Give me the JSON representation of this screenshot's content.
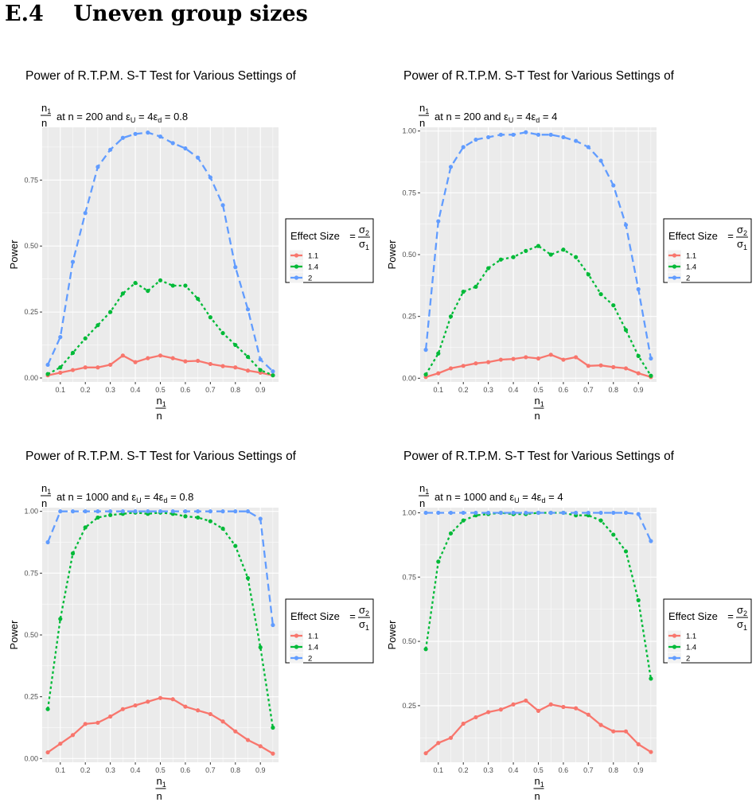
{
  "heading": {
    "number": "E.4",
    "text": "Uneven group sizes"
  },
  "axes": {
    "x_num": "n",
    "x_num_sub": "1",
    "x_den": "n",
    "ylabel": "Power"
  },
  "legend": {
    "title": "Effect Size",
    "eq": "=",
    "num": "σ",
    "num_sub": "2",
    "den": "σ",
    "den_sub": "1"
  },
  "colors": {
    "s11": "#F8766D",
    "s14": "#00BA38",
    "s2": "#619CFF"
  },
  "chart_data": [
    {
      "type": "line",
      "title": "Power of R.T.P.M. S-T Test for Various Settings of",
      "subtitle": {
        "frac_num": "n",
        "frac_num_sub": "1",
        "frac_den": "n",
        "pre": "at n = 200 and ε",
        "sub1": "U",
        "mid": " = 4ε",
        "sub2": "d",
        "post": " = 0.8"
      },
      "xlabel": "n1/n",
      "ylabel": "Power",
      "ylim": [
        -0.015,
        0.95
      ],
      "xlim": [
        0.0275,
        0.9725
      ],
      "yticks": [
        0,
        0.25,
        0.5,
        0.75
      ],
      "ytick_labels": [
        "0.00",
        "0.25",
        "0.50",
        "0.75"
      ],
      "xticks": [
        0.1,
        0.2,
        0.3,
        0.4,
        0.5,
        0.6,
        0.7,
        0.8,
        0.9
      ],
      "xtick_labels": [
        "0.1",
        "0.2",
        "0.3",
        "0.4",
        "0.5",
        "0.6",
        "0.7",
        "0.8",
        "0.9"
      ],
      "x": [
        0.05,
        0.1,
        0.15,
        0.2,
        0.25,
        0.3,
        0.35,
        0.4,
        0.45,
        0.5,
        0.55,
        0.6,
        0.65,
        0.7,
        0.75,
        0.8,
        0.85,
        0.9,
        0.95
      ],
      "grid": true,
      "legend": "right",
      "series": [
        {
          "name": "1.1",
          "color": "#F8766D",
          "dash": "solid",
          "values": [
            0.01,
            0.02,
            0.03,
            0.04,
            0.04,
            0.05,
            0.085,
            0.06,
            0.075,
            0.085,
            0.075,
            0.063,
            0.065,
            0.053,
            0.045,
            0.04,
            0.028,
            0.02,
            0.01
          ]
        },
        {
          "name": "1.4",
          "color": "#00BA38",
          "dash": "dotted",
          "values": [
            0.015,
            0.04,
            0.095,
            0.15,
            0.2,
            0.25,
            0.32,
            0.36,
            0.33,
            0.37,
            0.35,
            0.35,
            0.3,
            0.23,
            0.17,
            0.125,
            0.08,
            0.03,
            0.01
          ]
        },
        {
          "name": "2",
          "color": "#619CFF",
          "dash": "dashed",
          "values": [
            0.05,
            0.155,
            0.44,
            0.625,
            0.8,
            0.865,
            0.91,
            0.925,
            0.93,
            0.915,
            0.89,
            0.87,
            0.835,
            0.76,
            0.655,
            0.42,
            0.26,
            0.07,
            0.025
          ]
        }
      ]
    },
    {
      "type": "line",
      "title": "Power of R.T.P.M. S-T Test for Various Settings of",
      "subtitle": {
        "frac_num": "n",
        "frac_num_sub": "1",
        "frac_den": "n",
        "pre": "at n = 200 and ε",
        "sub1": "U",
        "mid": " = 4ε",
        "sub2": "d",
        "post": " = 4"
      },
      "xlabel": "n1/n",
      "ylabel": "Power",
      "ylim": [
        -0.015,
        1.015
      ],
      "xlim": [
        0.0275,
        0.9725
      ],
      "yticks": [
        0,
        0.25,
        0.5,
        0.75,
        1
      ],
      "ytick_labels": [
        "0.00",
        "0.25",
        "0.50",
        "0.75",
        "1.00"
      ],
      "xticks": [
        0.1,
        0.2,
        0.3,
        0.4,
        0.5,
        0.6,
        0.7,
        0.8,
        0.9
      ],
      "xtick_labels": [
        "0.1",
        "0.2",
        "0.3",
        "0.4",
        "0.5",
        "0.6",
        "0.7",
        "0.8",
        "0.9"
      ],
      "x": [
        0.05,
        0.1,
        0.15,
        0.2,
        0.25,
        0.3,
        0.35,
        0.4,
        0.45,
        0.5,
        0.55,
        0.6,
        0.65,
        0.7,
        0.75,
        0.8,
        0.85,
        0.9,
        0.95
      ],
      "grid": true,
      "legend": "right",
      "series": [
        {
          "name": "1.1",
          "color": "#F8766D",
          "dash": "solid",
          "values": [
            0.005,
            0.02,
            0.04,
            0.05,
            0.06,
            0.065,
            0.075,
            0.078,
            0.085,
            0.08,
            0.095,
            0.075,
            0.085,
            0.05,
            0.052,
            0.045,
            0.04,
            0.02,
            0.005
          ]
        },
        {
          "name": "1.4",
          "color": "#00BA38",
          "dash": "dotted",
          "values": [
            0.015,
            0.1,
            0.25,
            0.35,
            0.37,
            0.445,
            0.48,
            0.49,
            0.515,
            0.535,
            0.5,
            0.52,
            0.49,
            0.42,
            0.34,
            0.295,
            0.195,
            0.09,
            0.01
          ]
        },
        {
          "name": "2",
          "color": "#619CFF",
          "dash": "dashed",
          "values": [
            0.115,
            0.635,
            0.855,
            0.935,
            0.965,
            0.975,
            0.985,
            0.985,
            0.995,
            0.985,
            0.985,
            0.975,
            0.96,
            0.935,
            0.88,
            0.78,
            0.62,
            0.36,
            0.08
          ]
        }
      ]
    },
    {
      "type": "line",
      "title": "Power of R.T.P.M. S-T Test for Various Settings of",
      "subtitle": {
        "frac_num": "n",
        "frac_num_sub": "1",
        "frac_den": "n",
        "pre": "at n = 1000 and ε",
        "sub1": "U",
        "mid": " = 4ε",
        "sub2": "d",
        "post": " = 0.8"
      },
      "xlabel": "n1/n",
      "ylabel": "Power",
      "ylim": [
        -0.015,
        1.015
      ],
      "xlim": [
        0.0275,
        0.9725
      ],
      "yticks": [
        0,
        0.25,
        0.5,
        0.75,
        1
      ],
      "ytick_labels": [
        "0.00",
        "0.25",
        "0.50",
        "0.75",
        "1.00"
      ],
      "xticks": [
        0.1,
        0.2,
        0.3,
        0.4,
        0.5,
        0.6,
        0.7,
        0.8,
        0.9
      ],
      "xtick_labels": [
        "0.1",
        "0.2",
        "0.3",
        "0.4",
        "0.5",
        "0.6",
        "0.7",
        "0.8",
        "0.9"
      ],
      "x": [
        0.05,
        0.1,
        0.15,
        0.2,
        0.25,
        0.3,
        0.35,
        0.4,
        0.45,
        0.5,
        0.55,
        0.6,
        0.65,
        0.7,
        0.75,
        0.8,
        0.85,
        0.9,
        0.95
      ],
      "grid": true,
      "legend": "right",
      "series": [
        {
          "name": "1.1",
          "color": "#F8766D",
          "dash": "solid",
          "values": [
            0.025,
            0.06,
            0.095,
            0.14,
            0.145,
            0.17,
            0.2,
            0.215,
            0.23,
            0.245,
            0.24,
            0.21,
            0.195,
            0.18,
            0.15,
            0.11,
            0.075,
            0.05,
            0.02
          ]
        },
        {
          "name": "1.4",
          "color": "#00BA38",
          "dash": "dotted",
          "values": [
            0.2,
            0.565,
            0.83,
            0.935,
            0.975,
            0.985,
            0.99,
            0.995,
            0.99,
            0.995,
            0.99,
            0.98,
            0.975,
            0.96,
            0.93,
            0.86,
            0.73,
            0.45,
            0.125
          ]
        },
        {
          "name": "2",
          "color": "#619CFF",
          "dash": "dashed",
          "values": [
            0.875,
            1,
            1,
            1,
            1,
            1,
            1,
            1,
            1,
            1,
            1,
            1,
            1,
            1,
            1,
            1,
            1,
            0.97,
            0.54
          ]
        }
      ]
    },
    {
      "type": "line",
      "title": "Power of R.T.P.M. S-T Test for Various Settings of",
      "subtitle": {
        "frac_num": "n",
        "frac_num_sub": "1",
        "frac_den": "n",
        "pre": "at n = 1000 and ε",
        "sub1": "U",
        "mid": " = 4ε",
        "sub2": "d",
        "post": " = 4"
      },
      "xlabel": "n1/n",
      "ylabel": "Power",
      "ylim": [
        0.03,
        1.02
      ],
      "xlim": [
        0.0275,
        0.9725
      ],
      "yticks": [
        0.25,
        0.5,
        0.75,
        1
      ],
      "ytick_labels": [
        "0.25",
        "0.50",
        "0.75",
        "1.00"
      ],
      "xticks": [
        0.1,
        0.2,
        0.3,
        0.4,
        0.5,
        0.6,
        0.7,
        0.8,
        0.9
      ],
      "xtick_labels": [
        "0.1",
        "0.2",
        "0.3",
        "0.4",
        "0.5",
        "0.6",
        "0.7",
        "0.8",
        "0.9"
      ],
      "x": [
        0.05,
        0.1,
        0.15,
        0.2,
        0.25,
        0.3,
        0.35,
        0.4,
        0.45,
        0.5,
        0.55,
        0.6,
        0.65,
        0.7,
        0.75,
        0.8,
        0.85,
        0.9,
        0.95
      ],
      "grid": true,
      "legend": "right",
      "series": [
        {
          "name": "1.1",
          "color": "#F8766D",
          "dash": "solid",
          "values": [
            0.065,
            0.105,
            0.125,
            0.18,
            0.205,
            0.225,
            0.235,
            0.255,
            0.27,
            0.23,
            0.255,
            0.245,
            0.24,
            0.215,
            0.175,
            0.15,
            0.15,
            0.1,
            0.07
          ]
        },
        {
          "name": "1.4",
          "color": "#00BA38",
          "dash": "dotted",
          "values": [
            0.47,
            0.81,
            0.92,
            0.97,
            0.99,
            0.995,
            1,
            0.995,
            0.995,
            1,
            1,
            1,
            0.99,
            0.99,
            0.97,
            0.915,
            0.85,
            0.66,
            0.355
          ]
        },
        {
          "name": "2",
          "color": "#619CFF",
          "dash": "dashed",
          "values": [
            1,
            1,
            1,
            1,
            1,
            1,
            1,
            1,
            1,
            1,
            1,
            1,
            1,
            1,
            1,
            1,
            1,
            0.995,
            0.89
          ]
        }
      ]
    }
  ]
}
